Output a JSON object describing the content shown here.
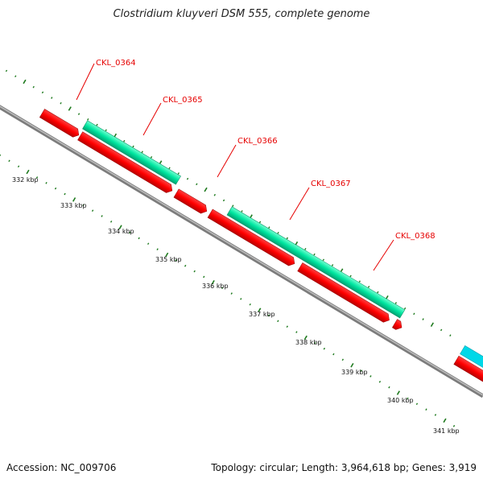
{
  "title": "Clostridium kluyveri DSM 555, complete genome",
  "footer": {
    "accession": "Accession: NC_009706",
    "topology": "Topology: circular; Length: 3,964,618 bp; Genes: 3,919"
  },
  "scale_labels": [
    "332 kbp",
    "333 kbp",
    "334 kbp",
    "335 kbp",
    "336 kbp",
    "337 kbp",
    "338 kbp",
    "339 kbp",
    "340 kbp",
    "341 kbp"
  ],
  "gene_labels": [
    "CKL_0364",
    "CKL_0365",
    "CKL_0366",
    "CKL_0367",
    "CKL_0368"
  ],
  "colors": {
    "cds_forward": "#ff0000",
    "cds_reverse": "#00e6a0",
    "blue_feature": "#0000dd",
    "khaki_feature": "#c8b87a",
    "cyan_feature": "#00d8e8",
    "backbone": "#8a8a8a",
    "tick": "#1e7a1e",
    "label": "#e60000"
  }
}
